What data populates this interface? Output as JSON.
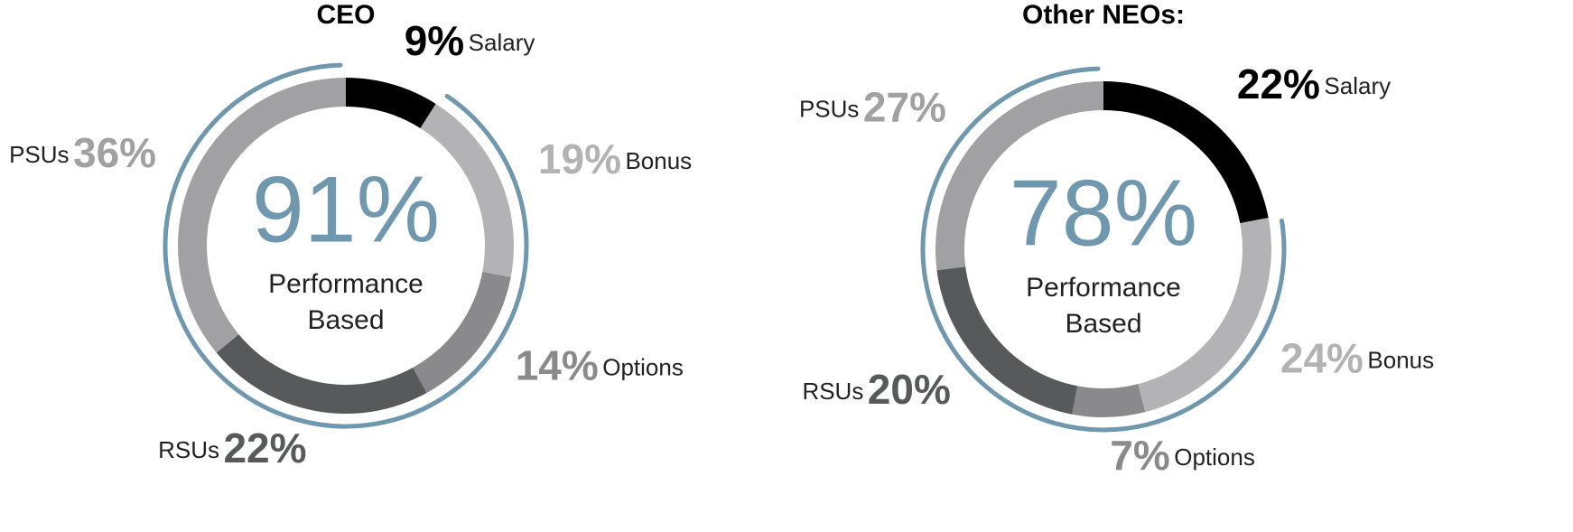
{
  "chart_data": [
    {
      "type": "donut",
      "title": "CEO",
      "categories": [
        "Salary",
        "Bonus",
        "Options",
        "RSUs",
        "PSUs"
      ],
      "values": [
        9,
        19,
        14,
        22,
        36
      ],
      "value_labels": [
        "9%",
        "19%",
        "14%",
        "22%",
        "36%"
      ],
      "colors": [
        "#000000",
        "#b3b3b5",
        "#8a8a8c",
        "#58595b",
        "#a1a1a3"
      ],
      "performance": {
        "value": 91,
        "label": "91%",
        "caption": "Performance Based",
        "color": "#6f97ae"
      }
    },
    {
      "type": "donut",
      "title": "Other NEOs:",
      "categories": [
        "Salary",
        "Bonus",
        "Options",
        "RSUs",
        "PSUs"
      ],
      "values": [
        22,
        24,
        7,
        20,
        27
      ],
      "value_labels": [
        "22%",
        "24%",
        "7%",
        "20%",
        "27%"
      ],
      "colors": [
        "#000000",
        "#b3b3b5",
        "#8a8a8c",
        "#58595b",
        "#a1a1a3"
      ],
      "performance": {
        "value": 78,
        "label": "78%",
        "caption": "Performance Based",
        "color": "#6f97ae"
      }
    }
  ]
}
